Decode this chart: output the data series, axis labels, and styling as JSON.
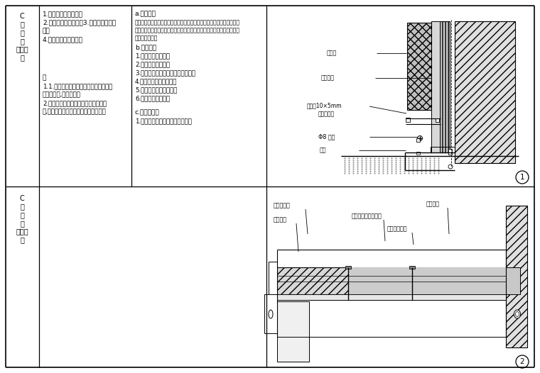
{
  "bg_color": "#ffffff",
  "line_color": "#000000",
  "fig_width": 7.6,
  "fig_height": 5.26,
  "left_label": "C\n石\n材\n与\n软包衔\n接",
  "items": [
    "1.石材背景与软包背景",
    "2.石材线条与墙面软包3.石材台面与墙面",
    "软包",
    "4.石材墙脚与墙面软包"
  ],
  "note_header": "注",
  "note_lines": [
    "1.1.由于其材质特殊在施工时要注意工序",
    "、材料保护,成品保护。",
    "2.由于软包在可变性所以造型、样式不",
    "一,对此一定要注意选择规格与材料尺。"
  ],
  "a_header": "a.施工工序",
  "a_lines": [
    "备备工作－－现场放线－－材料加工－－基层处理－－骨钢龙骨隔墙制作",
    "－－基层防火板固定－－石材专用粘结体－－铺贴石材－－成品软包安装",
    "－－完成面处理"
  ],
  "b_header": "b.用料分析",
  "b_lines": [
    "1.轻钢龙骨骨结材料",
    "2.选用指定石材加工",
    "3.软包基层固定、其他材料防火夹板",
    "4.用石材专用胶固定安装",
    "5.软包基层露面三防处理",
    "6.石材露缝六面防护"
  ],
  "c_header": "c.完成面处理",
  "c_lines": [
    "1.用金橘椰专用保护膜做成品保护"
  ],
  "d1_labels": [
    "软硬包",
    "防火夹板",
    "石材管10×5mm",
    "工艺缝抛光",
    "Φ8 钢筋",
    "地梁"
  ],
  "d2_labels": [
    "不锈钢槽条",
    "石材墙面",
    "定基饰面",
    "木工板素层防火三涂",
    "管钉骨钢柔层"
  ]
}
